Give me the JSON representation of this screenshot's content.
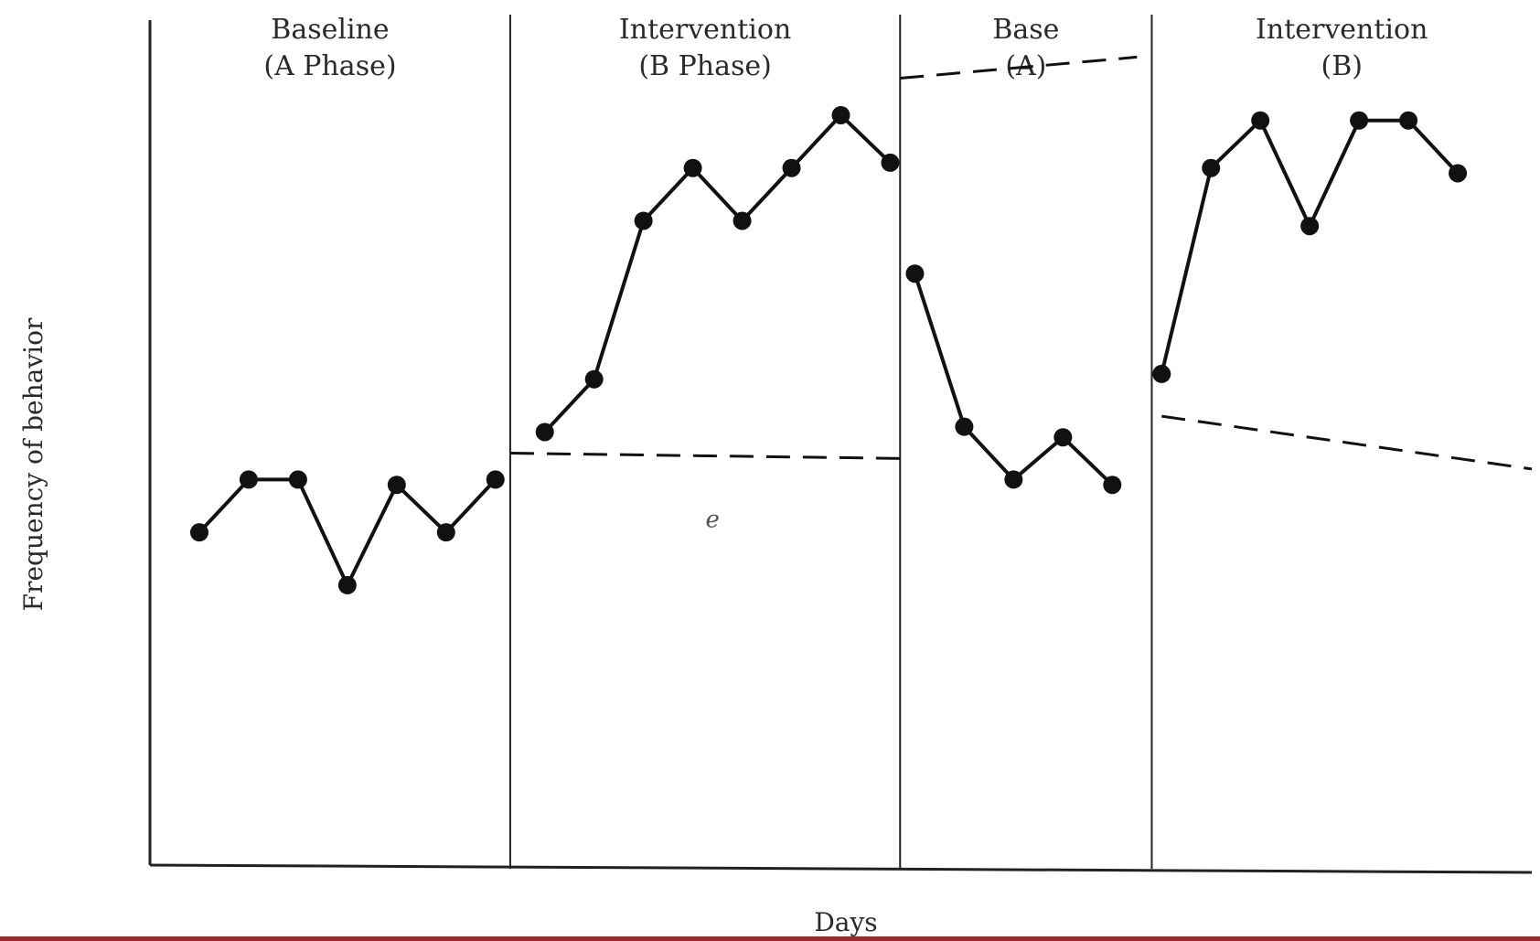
{
  "chart_data": {
    "type": "line",
    "title": "",
    "xlabel": "Days",
    "ylabel": "Frequency of behavior",
    "grid": false,
    "ylim": [
      0,
      16
    ],
    "xlim": [
      0,
      28
    ],
    "phases": [
      {
        "label_line1": "Baseline",
        "label_line2": "(A Phase)",
        "x_start": 0,
        "x_end": 7.3
      },
      {
        "label_line1": "Intervention",
        "label_line2": "(B Phase)",
        "x_start": 7.3,
        "x_end": 15.2
      },
      {
        "label_line1": "Base",
        "label_line2": "(A)",
        "x_start": 15.2,
        "x_end": 20.3
      },
      {
        "label_line1": "Intervention",
        "label_line2": "(B)",
        "x_start": 20.3,
        "x_end": 28
      }
    ],
    "series": [
      {
        "phase": 0,
        "x": [
          1,
          2,
          3,
          4,
          5,
          6,
          7
        ],
        "y": [
          6.3,
          7.3,
          7.3,
          5.3,
          7.2,
          6.3,
          7.3
        ]
      },
      {
        "phase": 1,
        "x": [
          8,
          9,
          10,
          11,
          12,
          13,
          14,
          15
        ],
        "y": [
          8.2,
          9.2,
          12.2,
          13.2,
          12.2,
          13.2,
          14.2,
          13.3
        ]
      },
      {
        "phase": 2,
        "x": [
          15.5,
          16.5,
          17.5,
          18.5,
          19.5
        ],
        "y": [
          11.2,
          8.3,
          7.3,
          8.1,
          7.2
        ]
      },
      {
        "phase": 3,
        "x": [
          20.5,
          21.5,
          22.5,
          23.5,
          24.5,
          25.5,
          26.5
        ],
        "y": [
          9.3,
          13.2,
          14.1,
          12.1,
          14.1,
          14.1,
          13.1
        ]
      }
    ],
    "reference_lines": [
      {
        "style": "dashed",
        "x": [
          7.3,
          15.2
        ],
        "y": [
          7.8,
          7.7
        ]
      },
      {
        "style": "dashed",
        "x": [
          15.2,
          20.0
        ],
        "y": [
          14.9,
          15.3
        ]
      },
      {
        "style": "dashed",
        "x": [
          20.5,
          28
        ],
        "y": [
          8.5,
          7.5
        ]
      }
    ],
    "annotations": [
      {
        "text": "ℯ",
        "x": 11.4,
        "y": 6.4
      }
    ]
  },
  "style": {
    "line_color": "#111111",
    "axis_color": "#222222",
    "bottom_bar_color": "#9b2a2a"
  }
}
